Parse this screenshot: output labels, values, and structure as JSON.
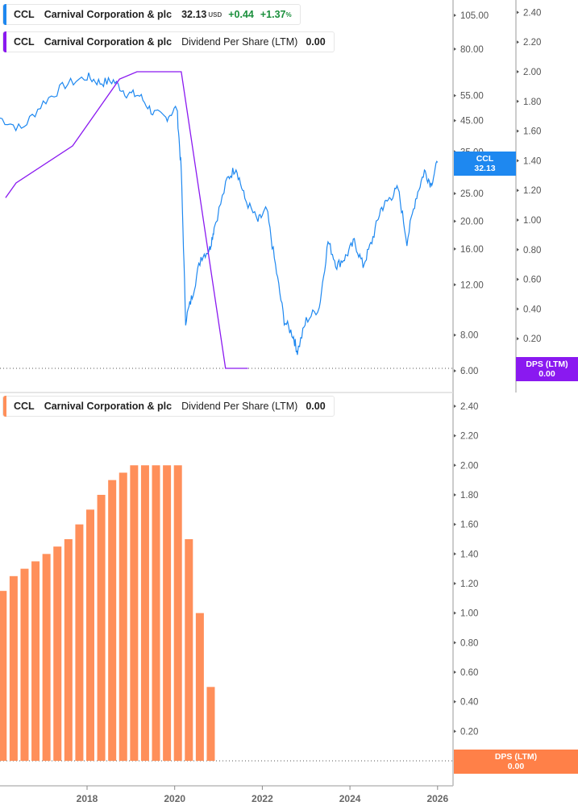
{
  "legend": {
    "price": {
      "ticker": "CCL",
      "name": "Carnival Corporation & plc",
      "price": "32.13",
      "currency": "USD",
      "change": "+0.44",
      "change_pct": "+1.37",
      "pct_sign": "%"
    },
    "dps_top": {
      "ticker": "CCL",
      "name": "Carnival Corporation & plc",
      "metric": "Dividend Per Share (LTM)",
      "value": "0.00"
    },
    "dps_bottom": {
      "ticker": "CCL",
      "name": "Carnival Corporation & plc",
      "metric": "Dividend Per Share (LTM)",
      "value": "0.00"
    }
  },
  "tags": {
    "price_label": "CCL",
    "price_value": "32.13",
    "dps_label": "DPS (LTM)",
    "dps_value": "0.00",
    "dps2_label": "DPS (LTM)",
    "dps2_value": "0.00"
  },
  "colors": {
    "price": "#1e88f0",
    "dps_line": "#8a19f0",
    "bars": "#ff8f5a",
    "dps_tag": "#8a19f0",
    "bar_tag": "#ff8048"
  },
  "chart_data": [
    {
      "type": "line",
      "scale": "log",
      "series": [
        {
          "name": "CCL",
          "x": [
            2016.0,
            2016.5,
            2017.0,
            2017.5,
            2018.0,
            2018.3,
            2018.6,
            2018.9,
            2019.2,
            2019.5,
            2019.8,
            2020.05,
            2020.15,
            2020.25,
            2020.4,
            2020.6,
            2020.8,
            2020.9,
            2021.2,
            2021.4,
            2021.6,
            2021.9,
            2022.1,
            2022.3,
            2022.5,
            2022.7,
            2022.8,
            2023.0,
            2023.3,
            2023.5,
            2023.7,
            2023.9,
            2024.1,
            2024.3,
            2024.5,
            2024.7,
            2024.9,
            2025.1,
            2025.3,
            2025.5,
            2025.7,
            2025.85,
            2026.0
          ],
          "values": [
            46,
            42,
            52,
            60,
            64,
            61,
            62,
            56,
            55,
            48,
            46,
            50,
            30,
            9,
            11,
            15,
            16,
            19,
            28,
            31,
            24,
            20,
            22,
            14,
            9,
            8,
            7,
            9,
            10,
            17,
            14,
            15,
            17,
            14,
            17,
            22,
            24,
            26,
            17,
            24,
            30,
            27,
            32.13
          ]
        }
      ],
      "yticks": [
        "105.00",
        "80.00",
        "55.00",
        "45.00",
        "35.00",
        "25.00",
        "20.00",
        "16.00",
        "12.00",
        "8.00",
        "6.00"
      ],
      "ylim": [
        6,
        105
      ]
    },
    {
      "type": "line",
      "series": [
        {
          "name": "Dividend Per Share (LTM)",
          "x": [
            2016.14,
            2016.38,
            2017.67,
            2018.74,
            2019.14,
            2020.15,
            2021.16,
            2021.67
          ],
          "values": [
            1.15,
            1.25,
            1.5,
            1.95,
            2.0,
            2.0,
            0.0,
            0.0
          ]
        }
      ],
      "yticks": [
        "2.40",
        "2.20",
        "2.00",
        "1.80",
        "1.60",
        "1.40",
        "1.20",
        "1.00",
        "0.80",
        "0.60",
        "0.40",
        "0.20"
      ],
      "ylim": [
        0,
        2.4
      ]
    },
    {
      "type": "bar",
      "x": [
        2016.0,
        2016.25,
        2016.5,
        2016.75,
        2017.0,
        2017.25,
        2017.5,
        2017.75,
        2018.0,
        2018.25,
        2018.5,
        2018.75,
        2019.0,
        2019.25,
        2019.5,
        2019.75,
        2020.0,
        2020.25,
        2020.5,
        2020.75
      ],
      "values": [
        1.15,
        1.25,
        1.3,
        1.35,
        1.4,
        1.45,
        1.5,
        1.6,
        1.7,
        1.8,
        1.9,
        1.95,
        2.0,
        2.0,
        2.0,
        2.0,
        2.0,
        1.5,
        1.0,
        0.5
      ],
      "yticks": [
        "2.40",
        "2.20",
        "2.00",
        "1.80",
        "1.60",
        "1.40",
        "1.20",
        "1.00",
        "0.80",
        "0.60",
        "0.40",
        "0.20",
        "0.00"
      ],
      "ylim": [
        0,
        2.4
      ]
    }
  ],
  "xaxis": {
    "ticks": [
      "2018",
      "2020",
      "2022",
      "2024",
      "2026"
    ]
  }
}
